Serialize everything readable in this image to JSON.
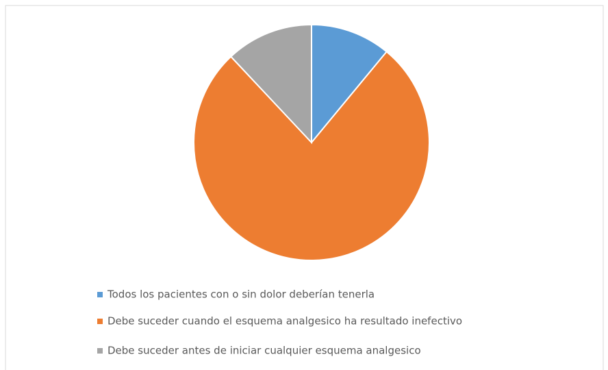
{
  "chart_data": {
    "type": "pie",
    "categories": [
      "Todos los pacientes con o sin dolor deberían tenerla",
      "Debe suceder cuando el esquema analgesico ha resultado inefectivo",
      "Debe suceder antes de iniciar cualquier esquema analgesico"
    ],
    "values": [
      11,
      77,
      12
    ],
    "colors": [
      "#5b9bd5",
      "#ed7d31",
      "#a5a5a5"
    ],
    "legend": "bottom-left"
  }
}
